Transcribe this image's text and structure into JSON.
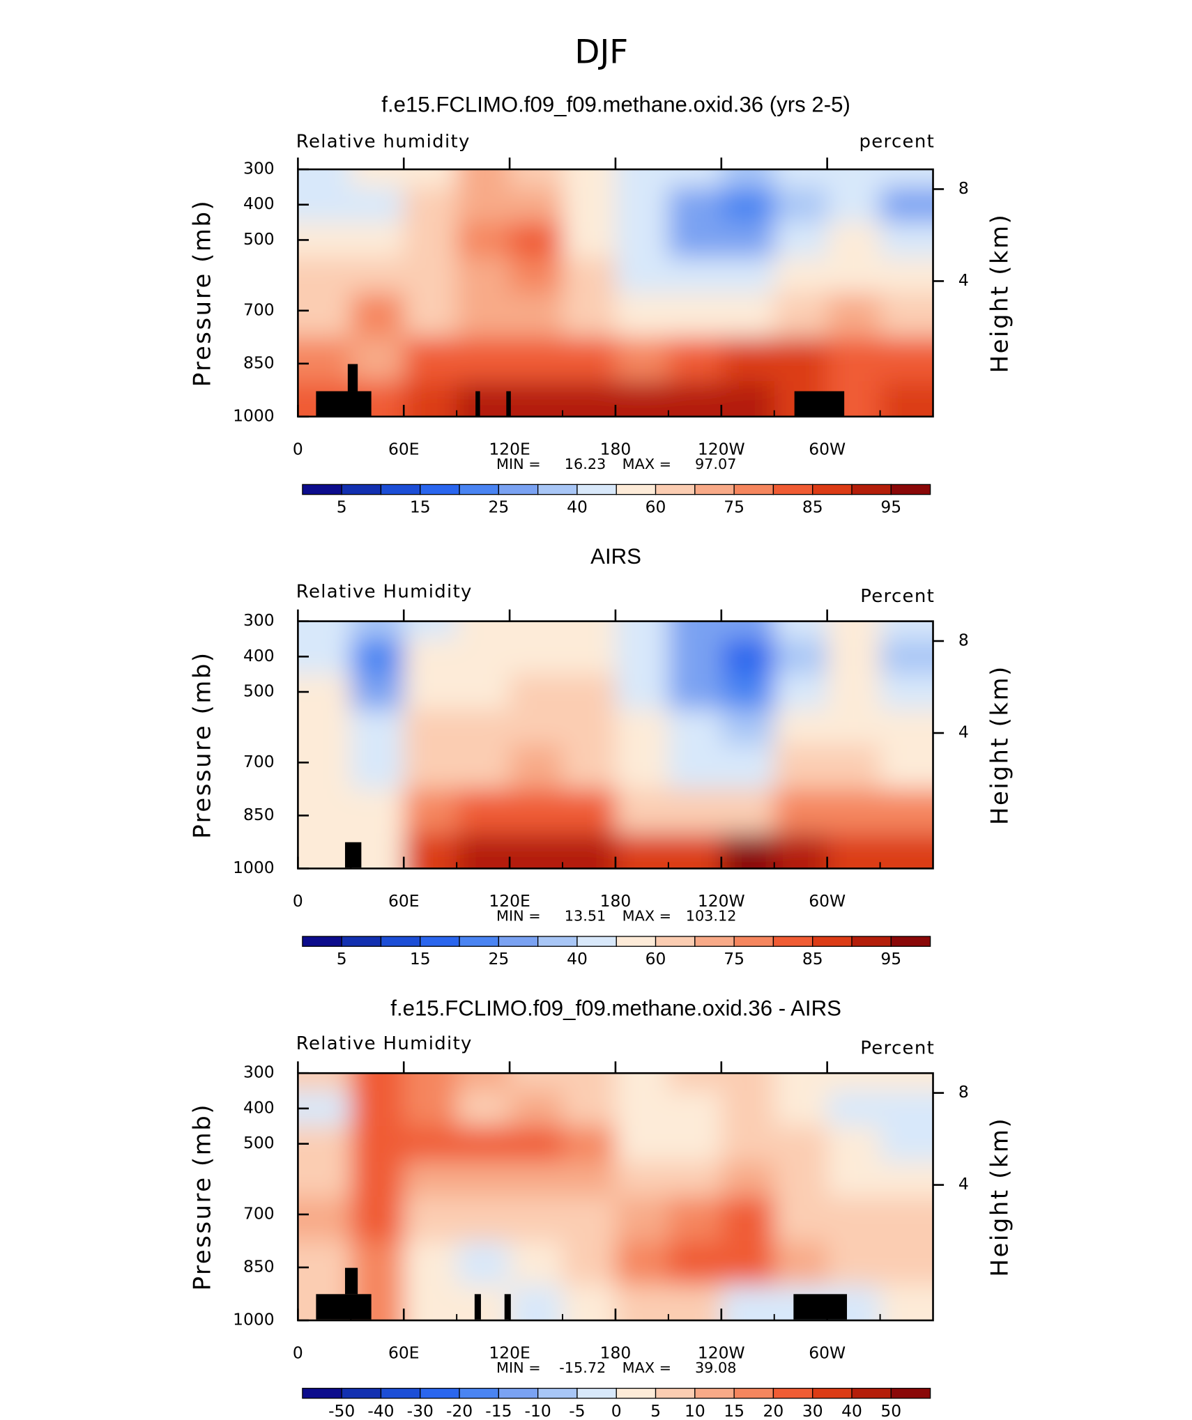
{
  "title": "DJF",
  "chart_data": [
    {
      "type": "contour",
      "title": "f.e15.FCLIMO.f09_f09.methane.oxid.36 (yrs 2-5)",
      "left_label": "Relative humidity",
      "right_label": "percent",
      "ylabel": "Pressure (mb)",
      "y2label": "Height (km)",
      "x": [
        15,
        45,
        75,
        105,
        135,
        165,
        195,
        225,
        255,
        285,
        315,
        345
      ],
      "y": [
        300,
        400,
        500,
        600,
        700,
        850,
        950
      ],
      "z": [
        [
          45,
          50,
          58,
          68,
          65,
          58,
          45,
          40,
          35,
          45,
          48,
          42
        ],
        [
          45,
          45,
          60,
          70,
          70,
          55,
          40,
          28,
          22,
          38,
          45,
          25
        ],
        [
          55,
          55,
          62,
          75,
          80,
          58,
          42,
          30,
          28,
          45,
          50,
          40
        ],
        [
          60,
          65,
          62,
          72,
          75,
          60,
          48,
          40,
          40,
          55,
          58,
          55
        ],
        [
          65,
          78,
          65,
          72,
          70,
          65,
          55,
          55,
          58,
          65,
          70,
          62
        ],
        [
          75,
          70,
          80,
          82,
          80,
          80,
          78,
          82,
          85,
          85,
          82,
          80
        ],
        [
          80,
          80,
          88,
          90,
          90,
          92,
          92,
          92,
          90,
          88,
          80,
          88
        ]
      ],
      "xlim": [
        0,
        360
      ],
      "xticks": [
        0,
        {
          "value": 60,
          "label": "60E"
        },
        {
          "value": 120,
          "label": "120E"
        },
        180,
        {
          "value": 240,
          "label": "120W"
        },
        {
          "value": 300,
          "label": "60W"
        }
      ],
      "ylim": [
        1000,
        300
      ],
      "yticks": [
        300,
        400,
        500,
        700,
        850,
        1000
      ],
      "y2ticks": [
        8,
        4
      ],
      "min_label": "MIN =",
      "min": 16.23,
      "max_label": "MAX =",
      "max": 97.07,
      "colorbar_labels": [
        5,
        15,
        25,
        40,
        60,
        75,
        85,
        95
      ],
      "colors": [
        "#0c0c8c",
        "#1230b0",
        "#1c4ed6",
        "#2a66ee",
        "#4a84f2",
        "#7aa2f2",
        "#a8c6f6",
        "#d8e8fa",
        "#fdebd8",
        "#fbcdb2",
        "#f8aa88",
        "#f5865e",
        "#f05c34",
        "#dc3c16",
        "#b41e0a",
        "#8a0808"
      ]
    },
    {
      "type": "contour",
      "title": "AIRS",
      "left_label": "Relative Humidity",
      "right_label": "Percent",
      "ylabel": "Pressure (mb)",
      "y2label": "Height (km)",
      "x": [
        15,
        45,
        75,
        105,
        135,
        165,
        195,
        225,
        255,
        285,
        315,
        345
      ],
      "y": [
        300,
        400,
        500,
        600,
        700,
        850,
        950
      ],
      "z": [
        [
          45,
          35,
          45,
          55,
          58,
          55,
          42,
          30,
          25,
          40,
          55,
          40
        ],
        [
          45,
          20,
          50,
          58,
          58,
          58,
          40,
          25,
          18,
          35,
          50,
          35
        ],
        [
          50,
          30,
          55,
          58,
          60,
          60,
          42,
          30,
          22,
          42,
          52,
          40
        ],
        [
          55,
          45,
          60,
          62,
          65,
          62,
          50,
          40,
          35,
          55,
          58,
          50
        ],
        [
          58,
          42,
          62,
          65,
          68,
          65,
          55,
          45,
          45,
          60,
          65,
          58
        ],
        [
          58,
          50,
          75,
          80,
          82,
          80,
          65,
          62,
          65,
          75,
          75,
          75
        ],
        [
          55,
          50,
          85,
          90,
          92,
          90,
          85,
          85,
          95,
          93,
          85,
          88
        ]
      ],
      "xlim": [
        0,
        360
      ],
      "xticks": [
        0,
        {
          "value": 60,
          "label": "60E"
        },
        {
          "value": 120,
          "label": "120E"
        },
        180,
        {
          "value": 240,
          "label": "120W"
        },
        {
          "value": 300,
          "label": "60W"
        }
      ],
      "ylim": [
        1000,
        300
      ],
      "yticks": [
        300,
        400,
        500,
        700,
        850,
        1000
      ],
      "y2ticks": [
        8,
        4
      ],
      "min_label": "MIN =",
      "min": 13.51,
      "max_label": "MAX =",
      "max": 103.12,
      "colorbar_labels": [
        5,
        15,
        25,
        40,
        60,
        75,
        85,
        95
      ],
      "colors": [
        "#0c0c8c",
        "#1230b0",
        "#1c4ed6",
        "#2a66ee",
        "#4a84f2",
        "#7aa2f2",
        "#a8c6f6",
        "#d8e8fa",
        "#fdebd8",
        "#fbcdb2",
        "#f8aa88",
        "#f5865e",
        "#f05c34",
        "#dc3c16",
        "#b41e0a",
        "#8a0808"
      ]
    },
    {
      "type": "contour",
      "title": "f.e15.FCLIMO.f09_f09.methane.oxid.36 - AIRS",
      "left_label": "Relative Humidity",
      "right_label": "Percent",
      "ylabel": "Pressure (mb)",
      "y2label": "Height (km)",
      "x": [
        15,
        45,
        75,
        105,
        135,
        165,
        195,
        225,
        255,
        285,
        315,
        345
      ],
      "y": [
        300,
        400,
        500,
        600,
        700,
        850,
        950
      ],
      "z": [
        [
          5,
          25,
          15,
          10,
          8,
          5,
          3,
          5,
          5,
          3,
          0,
          2
        ],
        [
          -5,
          25,
          15,
          8,
          10,
          5,
          2,
          3,
          5,
          3,
          -5,
          -5
        ],
        [
          5,
          22,
          20,
          20,
          22,
          15,
          2,
          2,
          5,
          5,
          0,
          -3
        ],
        [
          8,
          25,
          10,
          10,
          12,
          10,
          5,
          8,
          10,
          5,
          3,
          3
        ],
        [
          10,
          20,
          5,
          5,
          5,
          5,
          10,
          15,
          20,
          8,
          5,
          5
        ],
        [
          8,
          15,
          2,
          -2,
          0,
          5,
          18,
          22,
          25,
          10,
          8,
          5
        ],
        [
          8,
          15,
          0,
          2,
          -2,
          2,
          8,
          8,
          -2,
          -3,
          -3,
          2
        ]
      ],
      "xlim": [
        0,
        360
      ],
      "xticks": [
        0,
        {
          "value": 60,
          "label": "60E"
        },
        {
          "value": 120,
          "label": "120E"
        },
        180,
        {
          "value": 240,
          "label": "120W"
        },
        {
          "value": 300,
          "label": "60W"
        }
      ],
      "ylim": [
        1000,
        300
      ],
      "yticks": [
        300,
        400,
        500,
        700,
        850,
        1000
      ],
      "y2ticks": [
        8,
        4
      ],
      "min_label": "MIN =",
      "min": -15.72,
      "max_label": "MAX =",
      "max": 39.08,
      "colorbar_labels": [
        -50,
        -40,
        -30,
        -20,
        -15,
        -10,
        -5,
        0,
        5,
        10,
        15,
        20,
        30,
        40,
        50
      ],
      "colors": [
        "#0c0c8c",
        "#1230b0",
        "#1c4ed6",
        "#2a66ee",
        "#4a84f2",
        "#7aa2f2",
        "#a8c6f6",
        "#d8e8fa",
        "#fdebd8",
        "#fbcdb2",
        "#f8aa88",
        "#f5865e",
        "#f05c34",
        "#dc3c16",
        "#b41e0a",
        "#8a0808"
      ]
    }
  ]
}
